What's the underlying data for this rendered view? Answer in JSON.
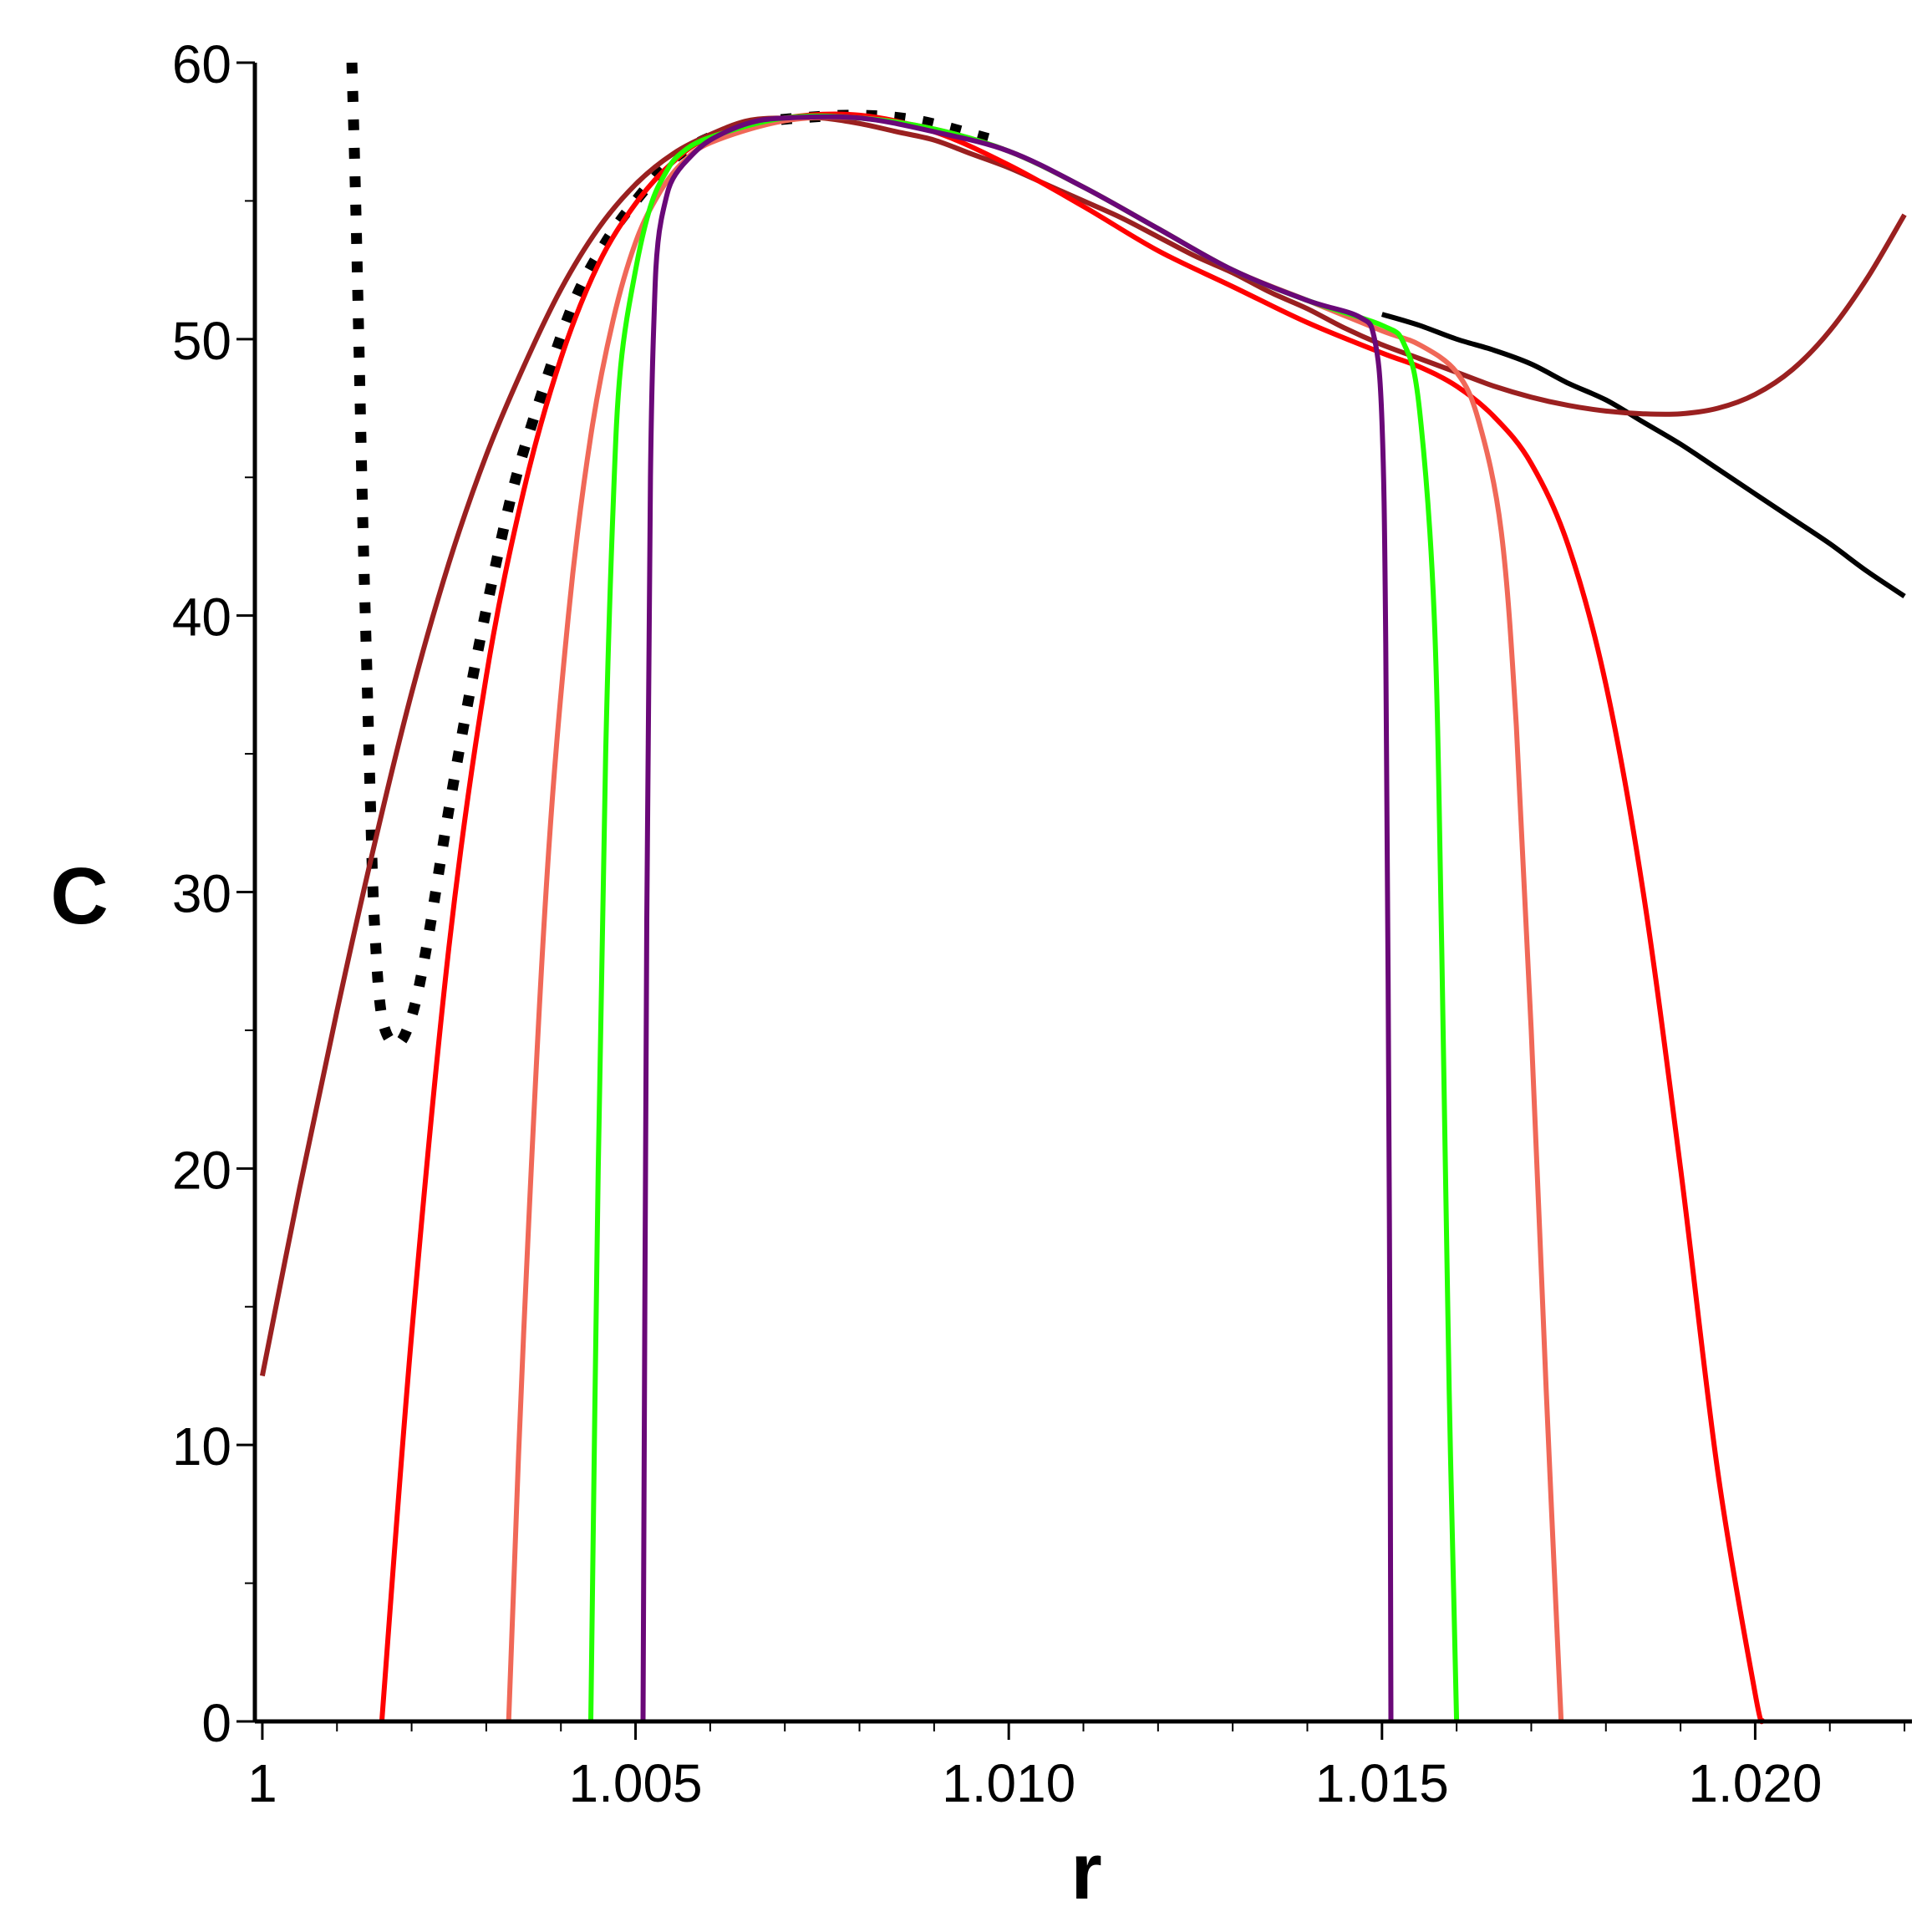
{
  "chart_data": {
    "type": "line",
    "title": "",
    "xlabel": "r",
    "ylabel": "C",
    "xlim": [
      0.9999,
      1.0221
    ],
    "ylim": [
      0,
      60
    ],
    "grid": false,
    "legend": "none",
    "x_ticks": [
      {
        "value": 1.0,
        "label": "1"
      },
      {
        "value": 1.005,
        "label": "1.005"
      },
      {
        "value": 1.01,
        "label": "1.010"
      },
      {
        "value": 1.015,
        "label": "1.015"
      },
      {
        "value": 1.02,
        "label": "1.020"
      }
    ],
    "x_minor_step": 0.001,
    "y_ticks": [
      {
        "value": 0,
        "label": "0"
      },
      {
        "value": 10,
        "label": "10"
      },
      {
        "value": 20,
        "label": "20"
      },
      {
        "value": 30,
        "label": "30"
      },
      {
        "value": 40,
        "label": "40"
      },
      {
        "value": 50,
        "label": "50"
      },
      {
        "value": 60,
        "label": "60"
      }
    ],
    "y_minor_step": 5,
    "series": [
      {
        "name": "black-reference",
        "color": "#000000",
        "dashed": false,
        "x": [
          1.015,
          1.0155,
          1.016,
          1.0165,
          1.017,
          1.0175,
          1.018,
          1.0185,
          1.019,
          1.0195,
          1.02,
          1.0205,
          1.021,
          1.0215,
          1.022
        ],
        "y": [
          50.9,
          50.5,
          50.0,
          49.6,
          49.1,
          48.4,
          47.8,
          47.0,
          46.2,
          45.3,
          44.4,
          43.5,
          42.6,
          41.6,
          40.7
        ]
      },
      {
        "name": "black-dotted",
        "color": "#000000",
        "dashed": true,
        "x": [
          1.0012,
          1.00125,
          1.0013,
          1.00135,
          1.0014,
          1.00145,
          1.0015,
          1.0016,
          1.0018,
          1.002,
          1.0022,
          1.0025,
          1.0028,
          1.0031,
          1.0034,
          1.0038,
          1.0042,
          1.0046,
          1.005,
          1.0055,
          1.006,
          1.0066,
          1.0072,
          1.008,
          1.0088,
          1.0098
        ],
        "y": [
          60.0,
          55.0,
          49.0,
          43.0,
          38.0,
          33.0,
          29.0,
          25.5,
          24.5,
          25.5,
          28.0,
          33.0,
          37.5,
          41.5,
          45.0,
          48.5,
          51.5,
          53.5,
          55.0,
          56.5,
          57.3,
          57.8,
          58.0,
          58.1,
          57.9,
          57.2
        ]
      },
      {
        "name": "brown",
        "color": "#9a2020",
        "dashed": false,
        "x": [
          1.0,
          1.0005,
          1.001,
          1.0015,
          1.002,
          1.0025,
          1.003,
          1.0035,
          1.004,
          1.0045,
          1.005,
          1.0055,
          1.006,
          1.0065,
          1.007,
          1.0075,
          1.008,
          1.0085,
          1.009,
          1.0095,
          1.01,
          1.0105,
          1.011,
          1.0115,
          1.012,
          1.0125,
          1.013,
          1.0135,
          1.014,
          1.0145,
          1.015,
          1.0155,
          1.016,
          1.0165,
          1.017,
          1.0175,
          1.018,
          1.0185,
          1.019,
          1.0195,
          1.02,
          1.0205,
          1.021,
          1.0215,
          1.022
        ],
        "y": [
          12.5,
          19.3,
          25.7,
          31.7,
          37.2,
          41.9,
          45.8,
          49.0,
          51.8,
          54.0,
          55.6,
          56.7,
          57.4,
          57.9,
          58.0,
          58.0,
          57.8,
          57.5,
          57.2,
          56.7,
          56.2,
          55.6,
          55.0,
          54.4,
          53.7,
          53.0,
          52.4,
          51.7,
          51.1,
          50.4,
          49.8,
          49.3,
          48.8,
          48.3,
          47.9,
          47.6,
          47.4,
          47.3,
          47.3,
          47.5,
          48.0,
          48.9,
          50.3,
          52.2,
          54.5
        ]
      },
      {
        "name": "red",
        "color": "#ff0000",
        "dashed": false,
        "x": [
          1.0016,
          1.002,
          1.0025,
          1.003,
          1.0035,
          1.004,
          1.0045,
          1.005,
          1.0055,
          1.006,
          1.007,
          1.008,
          1.009,
          1.01,
          1.011,
          1.012,
          1.013,
          1.014,
          1.015,
          1.0155,
          1.016,
          1.0165,
          1.017,
          1.0175,
          1.018,
          1.0185,
          1.019,
          1.0195,
          1.02,
          1.0201
        ],
        "y": [
          0.0,
          14.0,
          28.0,
          37.8,
          44.5,
          49.3,
          52.7,
          54.9,
          56.4,
          57.3,
          58.0,
          58.1,
          57.5,
          56.3,
          54.8,
          53.2,
          51.9,
          50.6,
          49.5,
          49.0,
          48.3,
          47.2,
          45.5,
          42.5,
          37.5,
          30.0,
          20.0,
          9.0,
          1.0,
          0.0
        ]
      },
      {
        "name": "salmon",
        "color": "#f06858",
        "dashed": false,
        "x": [
          1.0033,
          1.0035,
          1.0038,
          1.0041,
          1.0044,
          1.0047,
          1.005,
          1.0053,
          1.0056,
          1.006,
          1.007,
          1.008,
          1.009,
          1.01,
          1.011,
          1.012,
          1.013,
          1.014,
          1.015,
          1.0155,
          1.016,
          1.0163,
          1.0166,
          1.0168,
          1.017,
          1.0172,
          1.0174
        ],
        "y": [
          0.0,
          14.0,
          30.0,
          40.0,
          46.5,
          50.7,
          53.5,
          55.2,
          56.3,
          57.1,
          57.9,
          58.0,
          57.6,
          56.8,
          55.5,
          54.0,
          52.5,
          51.4,
          50.3,
          49.8,
          48.8,
          47.0,
          43.0,
          36.0,
          25.0,
          12.0,
          0.0
        ]
      },
      {
        "name": "green",
        "color": "#22ff00",
        "dashed": false,
        "x": [
          1.0044,
          1.0045,
          1.0046,
          1.0047,
          1.0048,
          1.005,
          1.0052,
          1.0054,
          1.0056,
          1.006,
          1.007,
          1.008,
          1.009,
          1.01,
          1.011,
          1.012,
          1.013,
          1.014,
          1.015,
          1.0153,
          1.0155,
          1.0157,
          1.0158,
          1.0159,
          1.016
        ],
        "y": [
          0.0,
          20.0,
          35.0,
          44.0,
          49.0,
          52.5,
          54.8,
          56.0,
          56.7,
          57.3,
          58.0,
          58.0,
          57.6,
          56.8,
          55.5,
          54.0,
          52.5,
          51.4,
          50.5,
          49.8,
          47.5,
          40.0,
          28.0,
          12.0,
          0.0
        ]
      },
      {
        "name": "purple",
        "color": "#6a0878",
        "dashed": false,
        "x": [
          1.0051,
          1.00515,
          1.0052,
          1.00525,
          1.0053,
          1.0054,
          1.0055,
          1.0057,
          1.006,
          1.0065,
          1.007,
          1.008,
          1.009,
          1.01,
          1.011,
          1.012,
          1.013,
          1.014,
          1.0147,
          1.0149,
          1.015,
          1.01505,
          1.0151,
          1.01512
        ],
        "y": [
          0.0,
          29.0,
          45.0,
          51.0,
          53.5,
          55.0,
          55.8,
          56.5,
          57.2,
          57.8,
          58.0,
          58.0,
          57.5,
          56.8,
          55.5,
          54.0,
          52.5,
          51.4,
          50.8,
          50.0,
          47.0,
          39.0,
          18.0,
          0.0
        ]
      }
    ]
  }
}
